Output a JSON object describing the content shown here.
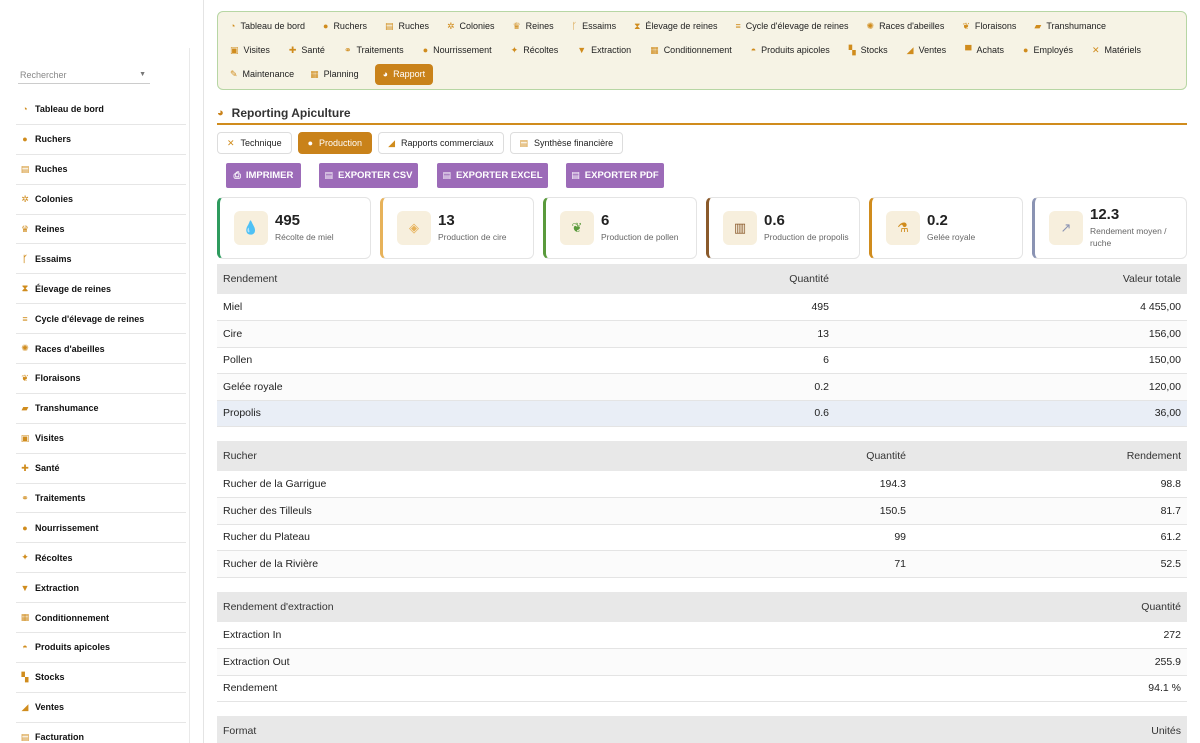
{
  "sidebar": {
    "search_placeholder": "Rechercher",
    "items": [
      {
        "label": "Tableau de bord",
        "icon": "dashboard-icon",
        "glyph": "◔"
      },
      {
        "label": "Ruchers",
        "icon": "map-pin-icon",
        "glyph": "●"
      },
      {
        "label": "Ruches",
        "icon": "hive-box-icon",
        "glyph": "▤"
      },
      {
        "label": "Colonies",
        "icon": "bee-icon",
        "glyph": "✲"
      },
      {
        "label": "Reines",
        "icon": "crown-icon",
        "glyph": "♛"
      },
      {
        "label": "Essaims",
        "icon": "branch-icon",
        "glyph": "ᚴ"
      },
      {
        "label": "Élevage de reines",
        "icon": "hourglass-icon",
        "glyph": "⧗"
      },
      {
        "label": "Cycle d'élevage de reines",
        "icon": "list-icon",
        "glyph": "≡"
      },
      {
        "label": "Races d'abeilles",
        "icon": "dna-icon",
        "glyph": "✺"
      },
      {
        "label": "Floraisons",
        "icon": "leaf-icon",
        "glyph": "❦"
      },
      {
        "label": "Transhumance",
        "icon": "truck-icon",
        "glyph": "▰"
      },
      {
        "label": "Visites",
        "icon": "clipboard-icon",
        "glyph": "▣"
      },
      {
        "label": "Santé",
        "icon": "medkit-icon",
        "glyph": "✚"
      },
      {
        "label": "Traitements",
        "icon": "pills-icon",
        "glyph": "⚭"
      },
      {
        "label": "Nourrissement",
        "icon": "drop-icon",
        "glyph": "●"
      },
      {
        "label": "Récoltes",
        "icon": "honey-pot-icon",
        "glyph": "✦"
      },
      {
        "label": "Extraction",
        "icon": "filter-icon",
        "glyph": "▼"
      },
      {
        "label": "Conditionnement",
        "icon": "package-icon",
        "glyph": "▦"
      },
      {
        "label": "Produits apicoles",
        "icon": "basket-icon",
        "glyph": "◓"
      },
      {
        "label": "Stocks",
        "icon": "boxes-icon",
        "glyph": "▚"
      },
      {
        "label": "Ventes",
        "icon": "hand-money-icon",
        "glyph": "◢"
      },
      {
        "label": "Facturation",
        "icon": "invoice-icon",
        "glyph": "▤"
      }
    ]
  },
  "topmenu": {
    "rows": [
      [
        {
          "label": "Tableau de bord",
          "icon": "dashboard-icon",
          "glyph": "◔"
        },
        {
          "label": "Ruchers",
          "icon": "map-pin-icon",
          "glyph": "●"
        },
        {
          "label": "Ruches",
          "icon": "hive-box-icon",
          "glyph": "▤"
        },
        {
          "label": "Colonies",
          "icon": "bee-icon",
          "glyph": "✲"
        },
        {
          "label": "Reines",
          "icon": "crown-icon",
          "glyph": "♛"
        },
        {
          "label": "Essaims",
          "icon": "branch-icon",
          "glyph": "ᚴ"
        },
        {
          "label": "Élevage de reines",
          "icon": "hourglass-icon",
          "glyph": "⧗"
        },
        {
          "label": "Cycle d'élevage de reines",
          "icon": "list-icon",
          "glyph": "≡"
        },
        {
          "label": "Races d'abeilles",
          "icon": "dna-icon",
          "glyph": "✺"
        },
        {
          "label": "Floraisons",
          "icon": "leaf-icon",
          "glyph": "❦"
        },
        {
          "label": "Transhumance",
          "icon": "truck-icon",
          "glyph": "▰"
        }
      ],
      [
        {
          "label": "Visites",
          "icon": "clipboard-icon",
          "glyph": "▣"
        },
        {
          "label": "Santé",
          "icon": "medkit-icon",
          "glyph": "✚"
        },
        {
          "label": "Traitements",
          "icon": "pills-icon",
          "glyph": "⚭"
        },
        {
          "label": "Nourrissement",
          "icon": "drop-icon",
          "glyph": "●"
        },
        {
          "label": "Récoltes",
          "icon": "honey-pot-icon",
          "glyph": "✦"
        },
        {
          "label": "Extraction",
          "icon": "filter-icon",
          "glyph": "▼"
        },
        {
          "label": "Conditionnement",
          "icon": "package-icon",
          "glyph": "▦"
        },
        {
          "label": "Produits apicoles",
          "icon": "basket-icon",
          "glyph": "◓"
        },
        {
          "label": "Stocks",
          "icon": "boxes-icon",
          "glyph": "▚"
        },
        {
          "label": "Ventes",
          "icon": "hand-money-icon",
          "glyph": "◢"
        },
        {
          "label": "Achats",
          "icon": "cart-icon",
          "glyph": "▀"
        },
        {
          "label": "Employés",
          "icon": "user-icon",
          "glyph": "●"
        },
        {
          "label": "Matériels",
          "icon": "tools-icon",
          "glyph": "✕"
        }
      ],
      [
        {
          "label": "Maintenance",
          "icon": "wrench-icon",
          "glyph": "✎"
        },
        {
          "label": "Planning",
          "icon": "calendar-icon",
          "glyph": "▦"
        },
        {
          "label": "Rapport",
          "icon": "pie-chart-icon",
          "glyph": "◕",
          "active": true
        }
      ]
    ]
  },
  "page": {
    "title": "Reporting Apiculture",
    "title_icon": "pie-chart-icon"
  },
  "tabs": [
    {
      "label": "Technique",
      "icon": "tools-icon",
      "glyph": "✕"
    },
    {
      "label": "Production",
      "icon": "drop-icon",
      "glyph": "●",
      "active": true
    },
    {
      "label": "Rapports commerciaux",
      "icon": "hand-money-icon",
      "glyph": "◢"
    },
    {
      "label": "Synthèse financière",
      "icon": "coins-icon",
      "glyph": "▤"
    }
  ],
  "buttons": {
    "print": "IMPRIMER",
    "csv": "EXPORTER CSV",
    "excel": "EXPORTER EXCEL",
    "pdf": "EXPORTER PDF"
  },
  "kpis": [
    {
      "value": "495",
      "label": "Récolte de miel",
      "icon": "drop-icon",
      "glyph": "💧",
      "color": "#2e9b5e"
    },
    {
      "value": "13",
      "label": "Production de cire",
      "icon": "layers-icon",
      "glyph": "◈",
      "color": "#e7b25a"
    },
    {
      "value": "6",
      "label": "Production de pollen",
      "icon": "seedling-icon",
      "glyph": "❦",
      "color": "#5a9a3c"
    },
    {
      "value": "0.6",
      "label": "Production de propolis",
      "icon": "jar-icon",
      "glyph": "▥",
      "color": "#8a5a2b"
    },
    {
      "value": "0.2",
      "label": "Gelée royale",
      "icon": "flask-icon",
      "glyph": "⚗",
      "color": "#d08c1d"
    },
    {
      "value": "12.3",
      "label": "Rendement moyen / ruche",
      "icon": "trend-chart-icon",
      "glyph": "↗",
      "color": "#8a93b3"
    }
  ],
  "table_rendement": {
    "headers": [
      "Rendement",
      "Quantité",
      "Valeur totale"
    ],
    "rows": [
      [
        "Miel",
        "495",
        "4 455,00"
      ],
      [
        "Cire",
        "13",
        "156,00"
      ],
      [
        "Pollen",
        "6",
        "150,00"
      ],
      [
        "Gelée royale",
        "0.2",
        "120,00"
      ],
      [
        "Propolis",
        "0.6",
        "36,00"
      ]
    ]
  },
  "table_rucher": {
    "headers": [
      "Rucher",
      "Quantité",
      "Rendement"
    ],
    "rows": [
      [
        "Rucher de la Garrigue",
        "194.3",
        "98.8"
      ],
      [
        "Rucher des Tilleuls",
        "150.5",
        "81.7"
      ],
      [
        "Rucher du Plateau",
        "99",
        "61.2"
      ],
      [
        "Rucher de la Rivière",
        "71",
        "52.5"
      ]
    ]
  },
  "table_extraction": {
    "headers": [
      "Rendement d'extraction",
      "Quantité"
    ],
    "rows": [
      [
        "Extraction In",
        "272"
      ],
      [
        "Extraction Out",
        "255.9"
      ],
      [
        "Rendement",
        "94.1 %"
      ]
    ]
  },
  "table_format": {
    "headers": [
      "Format",
      "Unités"
    ]
  }
}
